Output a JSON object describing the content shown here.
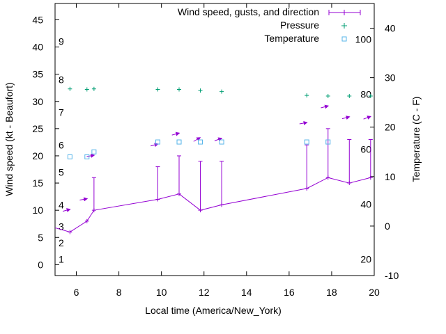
{
  "chart_data": {
    "type": "line",
    "xlabel": "Local time (America/New_York)",
    "ylabel": "Wind speed (kt - Beaufort)",
    "y2label": "Temperature (C - F)",
    "xlim": [
      5,
      20
    ],
    "ylim": [
      -2,
      48
    ],
    "y2lim": [
      -10,
      45
    ],
    "x_ticks": [
      "6",
      "8",
      "10",
      "12",
      "14",
      "16",
      "18",
      "20"
    ],
    "y_ticks": [
      "0",
      "5",
      "10",
      "15",
      "20",
      "25",
      "30",
      "35",
      "40",
      "45"
    ],
    "y2_ticks": [
      "-10",
      "0",
      "10",
      "20",
      "30",
      "40"
    ],
    "beaufort_labels": [
      "1",
      "2",
      "3",
      "4",
      "5",
      "6",
      "7",
      "8",
      "9"
    ],
    "fahrenheit_labels": [
      "20",
      "40",
      "60",
      "80",
      "100"
    ],
    "legend": {
      "position": "top-right",
      "entries": [
        "Wind speed, gusts, and direction",
        "Pressure",
        "Temperature"
      ]
    },
    "colors": {
      "wind": "#9400d3",
      "pressure": "#009e73",
      "temperature": "#56b4e9"
    },
    "series": [
      {
        "name": "Wind speed, gusts, and direction",
        "x": [
          4.8,
          5.7,
          6.5,
          6.83,
          9.83,
          10.83,
          11.83,
          12.83,
          16.83,
          17.83,
          18.83,
          19.83
        ],
        "values": [
          7,
          6,
          8,
          10,
          12,
          13,
          10,
          11,
          14,
          16,
          15,
          16
        ],
        "gusts": [
          null,
          null,
          null,
          16,
          18,
          20,
          19,
          19,
          22,
          25,
          23,
          23
        ],
        "direction_deg": [
          240,
          240,
          230,
          230,
          240,
          240,
          270,
          250,
          230,
          240,
          240,
          250
        ]
      },
      {
        "name": "Pressure",
        "x": [
          5.7,
          6.5,
          6.83,
          9.83,
          10.83,
          11.83,
          12.83,
          16.83,
          17.83,
          18.83,
          19.83
        ],
        "values": [
          32.3,
          32.2,
          32.3,
          32.2,
          32.2,
          32.0,
          31.8,
          31.1,
          31.0,
          31.0,
          31.0
        ]
      },
      {
        "name": "Temperature",
        "x": [
          5.7,
          6.5,
          6.83,
          9.83,
          10.83,
          11.83,
          12.83,
          16.83,
          17.83
        ],
        "values": [
          14,
          14,
          15,
          17,
          17,
          17,
          17,
          17,
          17
        ]
      }
    ]
  }
}
